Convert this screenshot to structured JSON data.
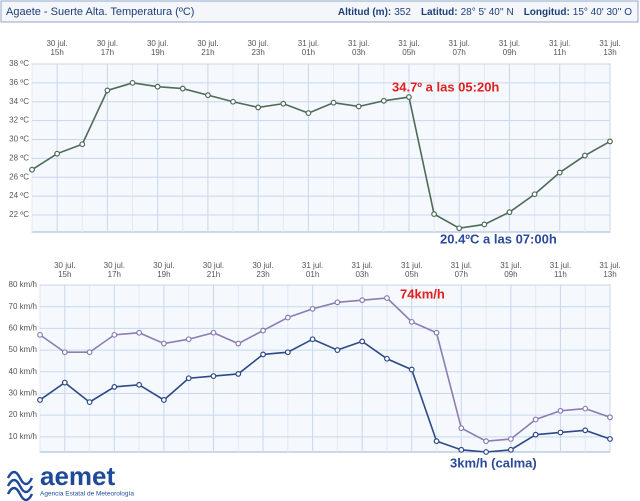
{
  "header": {
    "title": "Agaete - Suerte Alta. Temperatura (ºC)",
    "fields": [
      {
        "label": "Altitud (m):",
        "value": "352"
      },
      {
        "label": "Latitud:",
        "value": "28° 5' 40'' N"
      },
      {
        "label": "Longitud:",
        "value": "15° 40' 30'' O"
      }
    ]
  },
  "logo": {
    "name": "aemet",
    "subtitle": "Agencia Estatal de Meteorología"
  },
  "chart_data": [
    {
      "type": "line",
      "categories": [
        null,
        [
          "30 jul.",
          "15h"
        ],
        null,
        [
          "30 jul.",
          "17h"
        ],
        null,
        [
          "30 jul.",
          "19h"
        ],
        null,
        [
          "30 jul.",
          "21h"
        ],
        null,
        [
          "30 jul.",
          "23h"
        ],
        null,
        [
          "31 jul.",
          "01h"
        ],
        null,
        [
          "31 jul.",
          "03h"
        ],
        null,
        [
          "31 jul.",
          "05h"
        ],
        null,
        [
          "31 jul.",
          "07h"
        ],
        null,
        [
          "31 jul.",
          "09h"
        ],
        null,
        [
          "31 jul.",
          "11h"
        ],
        null,
        [
          "31 jul.",
          "13h"
        ]
      ],
      "series": [
        {
          "color": "#4f6b58",
          "values": [
            26.8,
            28.5,
            29.5,
            35.2,
            36.0,
            35.6,
            35.4,
            34.7,
            34.0,
            33.4,
            33.8,
            32.8,
            33.9,
            33.5,
            34.1,
            34.5,
            22.1,
            20.6,
            21.0,
            22.3,
            24.2,
            26.5,
            28.3,
            29.8
          ]
        }
      ],
      "ylim": [
        20.2,
        38
      ],
      "yticks": [
        {
          "value": 22,
          "label": "22 ºC"
        },
        {
          "value": 24,
          "label": "24 ºC"
        },
        {
          "value": 26,
          "label": "26 ºC"
        },
        {
          "value": 28,
          "label": "28 ºC"
        },
        {
          "value": 30,
          "label": "30 ºC"
        },
        {
          "value": 32,
          "label": "32 ºC"
        },
        {
          "value": 34,
          "label": "34 ºC"
        },
        {
          "value": 36,
          "label": "36 ºC"
        },
        {
          "value": 38,
          "label": "38 ºC"
        }
      ],
      "grid": true,
      "annotations": [
        {
          "text": "34.7º a las 05:20h",
          "color": "#e02020"
        },
        {
          "text": "20.4ºC a las 07:00h",
          "color": "#2b4a9a"
        }
      ]
    },
    {
      "type": "line",
      "categories": [
        null,
        [
          "30 jul.",
          "15h"
        ],
        null,
        [
          "30 jul.",
          "17h"
        ],
        null,
        [
          "30 jul.",
          "19h"
        ],
        null,
        [
          "30 jul.",
          "21h"
        ],
        null,
        [
          "30 jul.",
          "23h"
        ],
        null,
        [
          "31 jul.",
          "01h"
        ],
        null,
        [
          "31 jul.",
          "03h"
        ],
        null,
        [
          "31 jul.",
          "05h"
        ],
        null,
        [
          "31 jul.",
          "07h"
        ],
        null,
        [
          "31 jul.",
          "09h"
        ],
        null,
        [
          "31 jul.",
          "11h"
        ],
        null,
        [
          "31 jul.",
          "13h"
        ]
      ],
      "series": [
        {
          "color": "#8a7db3",
          "values": [
            57,
            49,
            49,
            57,
            58,
            53,
            55,
            58,
            53,
            59,
            65,
            69,
            72,
            73,
            74,
            63,
            58,
            14,
            8,
            9,
            18,
            22,
            23,
            19
          ]
        },
        {
          "color": "#2b4a86",
          "values": [
            27,
            35,
            26,
            33,
            34,
            27,
            37,
            38,
            39,
            48,
            49,
            55,
            50,
            54,
            46,
            41,
            8,
            4,
            3,
            4,
            11,
            12,
            13,
            9
          ]
        }
      ],
      "ylim": [
        3,
        80
      ],
      "yticks": [
        {
          "value": 10,
          "label": "10 km/h"
        },
        {
          "value": 20,
          "label": "20 km/h"
        },
        {
          "value": 30,
          "label": "30 km/h"
        },
        {
          "value": 40,
          "label": "40 km/h"
        },
        {
          "value": 50,
          "label": "50 km/h"
        },
        {
          "value": 60,
          "label": "60 km/h"
        },
        {
          "value": 70,
          "label": "70 km/h"
        },
        {
          "value": 80,
          "label": "80 km/h"
        }
      ],
      "grid": true,
      "annotations": [
        {
          "text": "74km/h",
          "color": "#e02020"
        },
        {
          "text": "3km/h (calma)",
          "color": "#2b4a9a"
        }
      ]
    }
  ]
}
